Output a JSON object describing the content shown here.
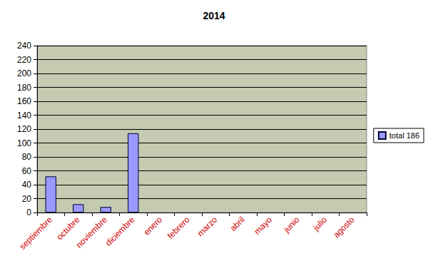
{
  "chart_data": {
    "type": "bar",
    "title": "2014",
    "categories": [
      "septiembre",
      "octubre",
      "noviembre",
      "diciembre",
      "enero",
      "febrero",
      "marzo",
      "abril",
      "mayo",
      "junio",
      "julio",
      "agosto"
    ],
    "series": [
      {
        "name": "total 186",
        "color": "#9999ff",
        "values": [
          52,
          12,
          8,
          114,
          null,
          null,
          null,
          null,
          null,
          null,
          null,
          null
        ]
      }
    ],
    "ylim": [
      0,
      240
    ],
    "yticks": [
      0,
      20,
      40,
      60,
      80,
      100,
      120,
      140,
      160,
      180,
      200,
      220,
      240
    ],
    "grid": true,
    "legend": "right"
  }
}
